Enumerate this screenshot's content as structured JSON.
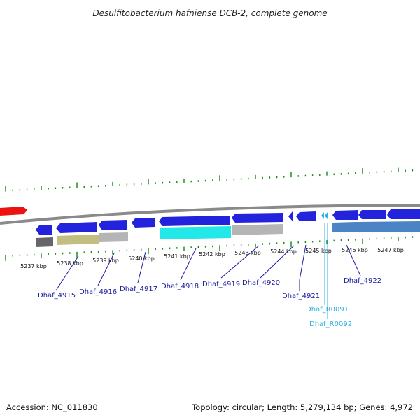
{
  "title": "Desulfitobacterium hafniense DCB-2, complete genome",
  "footer": {
    "accession": "Accession: NC_011830",
    "summary": "Topology: circular; Length: 5,279,134 bp; Genes: 4,972"
  },
  "colors": {
    "backbone": "#8a8a8a",
    "forward_gene": "#2323dd",
    "reverse_gene": "#3a5fd0",
    "prev_gene": "#ee1111",
    "ticks": "#118811",
    "gene_label": "#1a1aa0",
    "rna_label": "#33b0e0",
    "cog_gray": "#b5b5b5",
    "cog_dark": "#666666",
    "cog_olive": "#c2bd80",
    "cog_cyan": "#22e8e8",
    "cog_blue": "#4b84c4"
  },
  "ticks": {
    "labels": [
      "5237 kbp",
      "5238 kbp",
      "5239 kbp",
      "5240 kbp",
      "5241 kbp",
      "5242 kbp",
      "5243 kbp",
      "5244 kbp",
      "5245 kbp",
      "5246 kbp",
      "5247 kbp"
    ]
  },
  "genes": [
    {
      "label": "Dhaf_4915",
      "kind": "protein"
    },
    {
      "label": "Dhaf_4916",
      "kind": "protein"
    },
    {
      "label": "Dhaf_4917",
      "kind": "protein"
    },
    {
      "label": "Dhaf_4918",
      "kind": "protein"
    },
    {
      "label": "Dhaf_4919",
      "kind": "protein"
    },
    {
      "label": "Dhaf_4920",
      "kind": "protein"
    },
    {
      "label": "Dhaf_4921",
      "kind": "protein"
    },
    {
      "label": "Dhaf_R0091",
      "kind": "rna"
    },
    {
      "label": "Dhaf_R0092",
      "kind": "rna"
    },
    {
      "label": "Dhaf_4922",
      "kind": "protein"
    }
  ]
}
